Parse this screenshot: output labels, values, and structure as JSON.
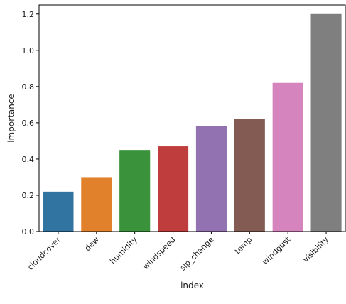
{
  "chart_data": {
    "type": "bar",
    "title": "",
    "xlabel": "index",
    "ylabel": "importance",
    "categories": [
      "cloudcover",
      "dew",
      "humidity",
      "windspeed",
      "slp_change",
      "temp",
      "windgust",
      "visibility"
    ],
    "values": [
      0.22,
      0.3,
      0.45,
      0.47,
      0.58,
      0.62,
      0.82,
      1.2
    ],
    "colors": [
      "#3274a1",
      "#e1812c",
      "#3a923a",
      "#c03d3e",
      "#9372b2",
      "#845b53",
      "#d684bd",
      "#7f7f7f"
    ],
    "ylim": [
      0,
      1.25
    ],
    "yticks": [
      0.0,
      0.2,
      0.4,
      0.6,
      0.8,
      1.0,
      1.2
    ],
    "ytick_labels": [
      "0.0",
      "0.2",
      "0.4",
      "0.6",
      "0.8",
      "1.0",
      "1.2"
    ],
    "grid": false,
    "legend": "none"
  }
}
